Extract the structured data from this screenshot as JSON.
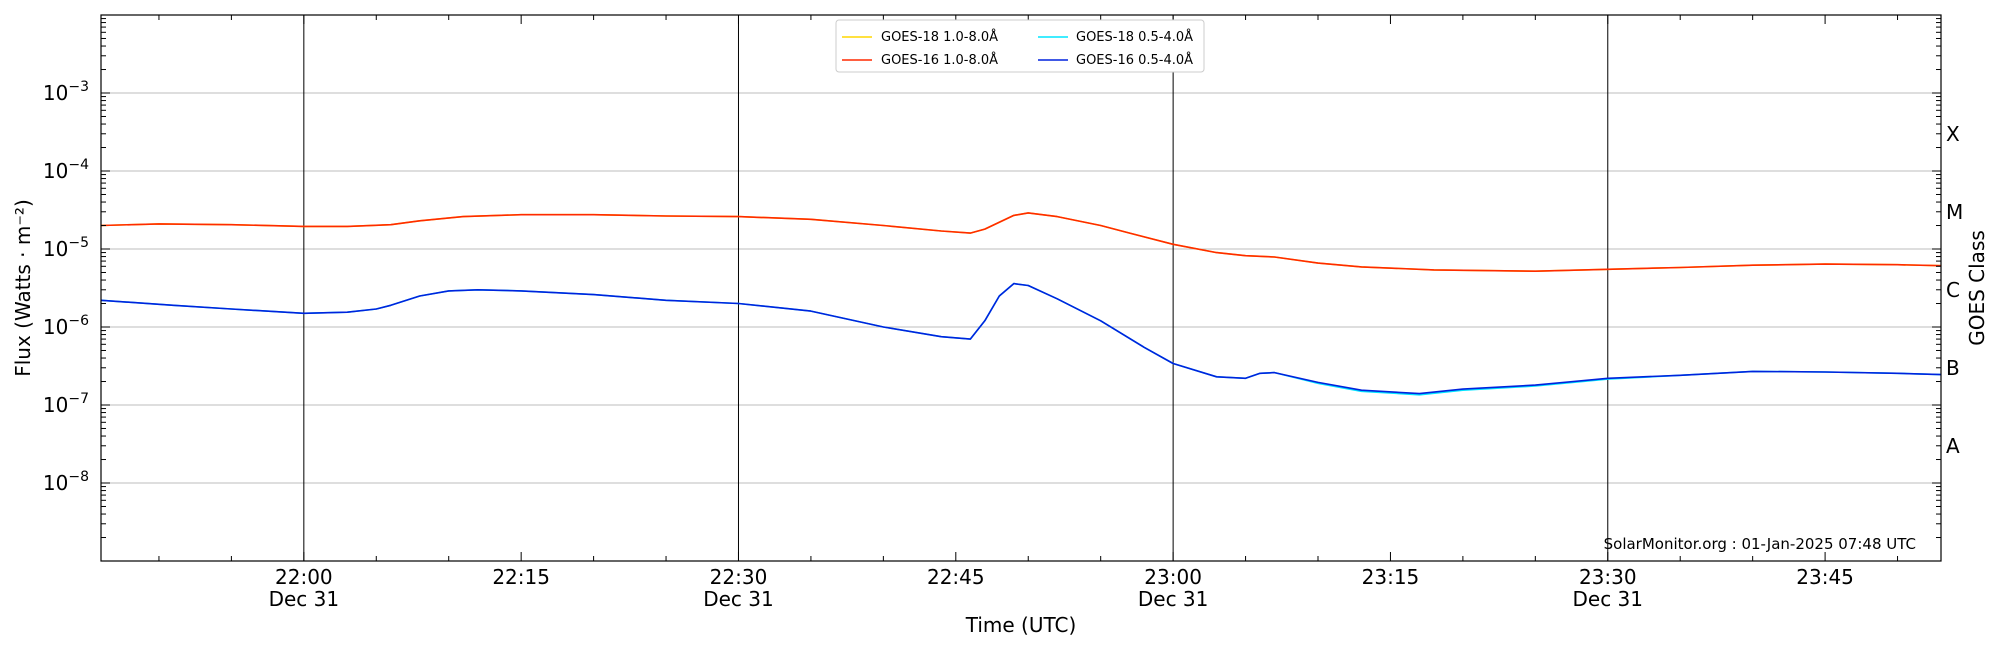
{
  "chart_data": {
    "type": "line",
    "xlabel": "Time (UTC)",
    "ylabel": "Flux (Watts · m⁻²)",
    "y2label": "GOES Class",
    "yscale": "log",
    "ylim": [
      1e-09,
      0.01
    ],
    "xlim": [
      "21:46",
      "23:53"
    ],
    "grid": "horizontal at decades",
    "legend_position": "top-center",
    "credit": "SolarMonitor.org : 01-Jan-2025 07:48 UTC",
    "y_ticks": [
      {
        "value": 1e-08,
        "base": "10",
        "exp": "−8"
      },
      {
        "value": 1e-07,
        "base": "10",
        "exp": "−7"
      },
      {
        "value": 1e-06,
        "base": "10",
        "exp": "−6"
      },
      {
        "value": 1e-05,
        "base": "10",
        "exp": "−5"
      },
      {
        "value": 0.0001,
        "base": "10",
        "exp": "−4"
      },
      {
        "value": 0.001,
        "base": "10",
        "exp": "−3"
      }
    ],
    "x_ticks": [
      {
        "time": "22:00",
        "label": "22:00",
        "date": "Dec 31"
      },
      {
        "time": "22:15",
        "label": "22:15",
        "date": ""
      },
      {
        "time": "22:30",
        "label": "22:30",
        "date": "Dec 31"
      },
      {
        "time": "22:45",
        "label": "22:45",
        "date": ""
      },
      {
        "time": "23:00",
        "label": "23:00",
        "date": "Dec 31"
      },
      {
        "time": "23:15",
        "label": "23:15",
        "date": ""
      },
      {
        "time": "23:30",
        "label": "23:30",
        "date": "Dec 31"
      },
      {
        "time": "23:45",
        "label": "23:45",
        "date": ""
      }
    ],
    "vlines": [
      "22:00",
      "22:30",
      "23:00",
      "23:30"
    ],
    "classes": [
      {
        "label": "X",
        "value": 0.0003
      },
      {
        "label": "M",
        "value": 3e-05
      },
      {
        "label": "C",
        "value": 3e-06
      },
      {
        "label": "B",
        "value": 3e-07
      },
      {
        "label": "A",
        "value": 3e-08
      }
    ],
    "series": [
      {
        "name": "GOES-18 1.0-8.0Å",
        "color": "#ffd700",
        "points": [
          [
            "21:46",
            2e-05
          ],
          [
            "21:50",
            2.1e-05
          ],
          [
            "21:55",
            2.05e-05
          ],
          [
            "22:00",
            1.95e-05
          ],
          [
            "22:03",
            1.95e-05
          ],
          [
            "22:06",
            2.05e-05
          ],
          [
            "22:08",
            2.3e-05
          ],
          [
            "22:11",
            2.6e-05
          ],
          [
            "22:15",
            2.75e-05
          ],
          [
            "22:20",
            2.75e-05
          ],
          [
            "22:25",
            2.65e-05
          ],
          [
            "22:30",
            2.6e-05
          ],
          [
            "22:35",
            2.4e-05
          ],
          [
            "22:40",
            2e-05
          ],
          [
            "22:44",
            1.7e-05
          ],
          [
            "22:46",
            1.6e-05
          ],
          [
            "22:47",
            1.8e-05
          ],
          [
            "22:49",
            2.7e-05
          ],
          [
            "22:50",
            2.9e-05
          ],
          [
            "22:52",
            2.6e-05
          ],
          [
            "22:55",
            2e-05
          ],
          [
            "22:57",
            1.6e-05
          ],
          [
            "23:00",
            1.15e-05
          ],
          [
            "23:03",
            9e-06
          ],
          [
            "23:05",
            8.2e-06
          ],
          [
            "23:07",
            7.9e-06
          ],
          [
            "23:10",
            6.6e-06
          ],
          [
            "23:13",
            5.9e-06
          ],
          [
            "23:18",
            5.4e-06
          ],
          [
            "23:25",
            5.2e-06
          ],
          [
            "23:30",
            5.5e-06
          ],
          [
            "23:35",
            5.8e-06
          ],
          [
            "23:40",
            6.2e-06
          ],
          [
            "23:45",
            6.4e-06
          ],
          [
            "23:50",
            6.3e-06
          ],
          [
            "23:53",
            6.1e-06
          ]
        ]
      },
      {
        "name": "GOES-16 1.0-8.0Å",
        "color": "#ff2a00",
        "points": [
          [
            "21:46",
            2e-05
          ],
          [
            "21:50",
            2.1e-05
          ],
          [
            "21:55",
            2.05e-05
          ],
          [
            "22:00",
            1.95e-05
          ],
          [
            "22:03",
            1.95e-05
          ],
          [
            "22:06",
            2.05e-05
          ],
          [
            "22:08",
            2.3e-05
          ],
          [
            "22:11",
            2.6e-05
          ],
          [
            "22:15",
            2.75e-05
          ],
          [
            "22:20",
            2.75e-05
          ],
          [
            "22:25",
            2.65e-05
          ],
          [
            "22:30",
            2.6e-05
          ],
          [
            "22:35",
            2.4e-05
          ],
          [
            "22:40",
            2e-05
          ],
          [
            "22:44",
            1.7e-05
          ],
          [
            "22:46",
            1.6e-05
          ],
          [
            "22:47",
            1.8e-05
          ],
          [
            "22:49",
            2.7e-05
          ],
          [
            "22:50",
            2.9e-05
          ],
          [
            "22:52",
            2.6e-05
          ],
          [
            "22:55",
            2e-05
          ],
          [
            "22:57",
            1.6e-05
          ],
          [
            "23:00",
            1.15e-05
          ],
          [
            "23:03",
            9e-06
          ],
          [
            "23:05",
            8.2e-06
          ],
          [
            "23:07",
            7.9e-06
          ],
          [
            "23:10",
            6.6e-06
          ],
          [
            "23:13",
            5.9e-06
          ],
          [
            "23:18",
            5.4e-06
          ],
          [
            "23:25",
            5.2e-06
          ],
          [
            "23:30",
            5.5e-06
          ],
          [
            "23:35",
            5.8e-06
          ],
          [
            "23:40",
            6.2e-06
          ],
          [
            "23:45",
            6.4e-06
          ],
          [
            "23:50",
            6.3e-06
          ],
          [
            "23:53",
            6.1e-06
          ]
        ]
      },
      {
        "name": "GOES-18 0.5-4.0Å",
        "color": "#00e5ff",
        "points": [
          [
            "21:46",
            2.2e-06
          ],
          [
            "21:51",
            1.9e-06
          ],
          [
            "21:55",
            1.7e-06
          ],
          [
            "22:00",
            1.5e-06
          ],
          [
            "22:03",
            1.55e-06
          ],
          [
            "22:05",
            1.7e-06
          ],
          [
            "22:06",
            1.9e-06
          ],
          [
            "22:08",
            2.5e-06
          ],
          [
            "22:10",
            2.9e-06
          ],
          [
            "22:12",
            3e-06
          ],
          [
            "22:15",
            2.9e-06
          ],
          [
            "22:20",
            2.6e-06
          ],
          [
            "22:25",
            2.2e-06
          ],
          [
            "22:30",
            2e-06
          ],
          [
            "22:35",
            1.6e-06
          ],
          [
            "22:40",
            1e-06
          ],
          [
            "22:44",
            7.5e-07
          ],
          [
            "22:46",
            7e-07
          ],
          [
            "22:47",
            1.2e-06
          ],
          [
            "22:48",
            2.5e-06
          ],
          [
            "22:49",
            3.6e-06
          ],
          [
            "22:50",
            3.4e-06
          ],
          [
            "22:52",
            2.3e-06
          ],
          [
            "22:55",
            1.2e-06
          ],
          [
            "22:58",
            5.5e-07
          ],
          [
            "23:00",
            3.4e-07
          ],
          [
            "23:03",
            2.3e-07
          ],
          [
            "23:05",
            2.2e-07
          ],
          [
            "23:06",
            2.55e-07
          ],
          [
            "23:07",
            2.6e-07
          ],
          [
            "23:10",
            1.9e-07
          ],
          [
            "23:13",
            1.5e-07
          ],
          [
            "23:17",
            1.35e-07
          ],
          [
            "23:20",
            1.55e-07
          ],
          [
            "23:25",
            1.75e-07
          ],
          [
            "23:30",
            2.15e-07
          ],
          [
            "23:35",
            2.4e-07
          ],
          [
            "23:40",
            2.7e-07
          ],
          [
            "23:45",
            2.65e-07
          ],
          [
            "23:50",
            2.55e-07
          ],
          [
            "23:53",
            2.45e-07
          ]
        ]
      },
      {
        "name": "GOES-16 0.5-4.0Å",
        "color": "#0022dd",
        "points": [
          [
            "21:46",
            2.2e-06
          ],
          [
            "21:51",
            1.9e-06
          ],
          [
            "21:55",
            1.7e-06
          ],
          [
            "22:00",
            1.5e-06
          ],
          [
            "22:03",
            1.55e-06
          ],
          [
            "22:05",
            1.7e-06
          ],
          [
            "22:06",
            1.9e-06
          ],
          [
            "22:08",
            2.5e-06
          ],
          [
            "22:10",
            2.9e-06
          ],
          [
            "22:12",
            3e-06
          ],
          [
            "22:15",
            2.9e-06
          ],
          [
            "22:20",
            2.6e-06
          ],
          [
            "22:25",
            2.2e-06
          ],
          [
            "22:30",
            2e-06
          ],
          [
            "22:35",
            1.6e-06
          ],
          [
            "22:40",
            1e-06
          ],
          [
            "22:44",
            7.5e-07
          ],
          [
            "22:46",
            7e-07
          ],
          [
            "22:47",
            1.2e-06
          ],
          [
            "22:48",
            2.5e-06
          ],
          [
            "22:49",
            3.6e-06
          ],
          [
            "22:50",
            3.4e-06
          ],
          [
            "22:52",
            2.3e-06
          ],
          [
            "22:55",
            1.2e-06
          ],
          [
            "22:58",
            5.5e-07
          ],
          [
            "23:00",
            3.4e-07
          ],
          [
            "23:03",
            2.3e-07
          ],
          [
            "23:05",
            2.2e-07
          ],
          [
            "23:06",
            2.55e-07
          ],
          [
            "23:07",
            2.6e-07
          ],
          [
            "23:10",
            1.95e-07
          ],
          [
            "23:13",
            1.55e-07
          ],
          [
            "23:17",
            1.4e-07
          ],
          [
            "23:20",
            1.6e-07
          ],
          [
            "23:25",
            1.8e-07
          ],
          [
            "23:30",
            2.2e-07
          ],
          [
            "23:35",
            2.4e-07
          ],
          [
            "23:40",
            2.7e-07
          ],
          [
            "23:45",
            2.65e-07
          ],
          [
            "23:50",
            2.55e-07
          ],
          [
            "23:53",
            2.45e-07
          ]
        ]
      }
    ]
  }
}
